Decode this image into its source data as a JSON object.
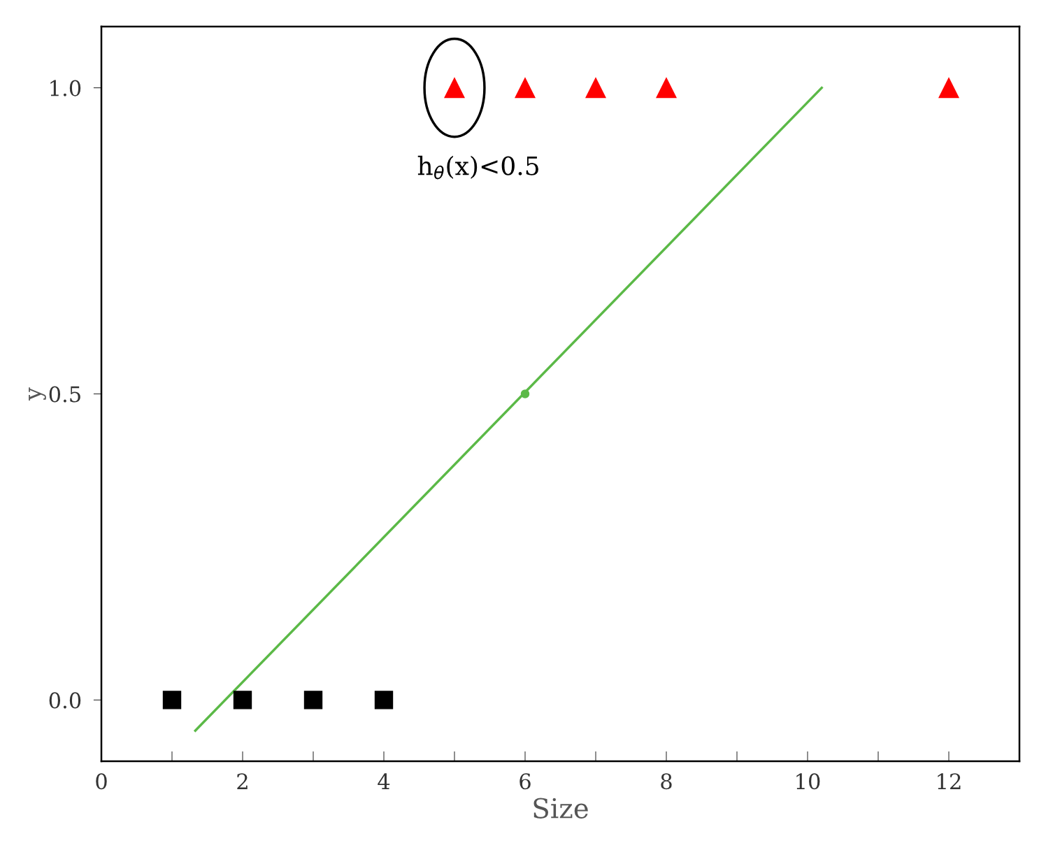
{
  "chart_data": {
    "type": "scatter",
    "xlabel": "Size",
    "ylabel": "y",
    "xlim": [
      0,
      13
    ],
    "ylim": [
      -0.1,
      1.1
    ],
    "xticks": [
      0,
      {
        "value": 1,
        "label": null
      },
      2,
      {
        "value": 3,
        "label": null
      },
      4,
      {
        "value": 5,
        "label": null
      },
      6,
      {
        "value": 7,
        "label": null
      },
      8,
      {
        "value": 9,
        "label": null
      },
      10,
      {
        "value": 11,
        "label": null
      },
      12
    ],
    "yticks": [
      {
        "value": 0,
        "label": "0.0"
      },
      0.5,
      {
        "value": 1,
        "label": "1.0"
      }
    ],
    "grid": false,
    "legend": false,
    "series": [
      {
        "marker": "square",
        "color": "#000000",
        "x": [
          1,
          2,
          3,
          4
        ],
        "values": [
          0,
          0,
          0,
          0
        ]
      },
      {
        "marker": "triangle",
        "color": "#ff0000",
        "x": [
          5,
          6,
          7,
          8,
          12
        ],
        "values": [
          1,
          1,
          1,
          1,
          1
        ]
      },
      {
        "type": "line",
        "color": "#5bb947",
        "line_style": "solid",
        "x": [
          1.33,
          10.2
        ],
        "values": [
          -0.05,
          1.0
        ]
      },
      {
        "marker": "circle",
        "color": "#5bb947",
        "x": [
          6
        ],
        "values": [
          0.5
        ]
      }
    ],
    "annotations": [
      {
        "text": "h$_{θ}$(x)<0.5",
        "x": 5,
        "y": 1
      }
    ]
  }
}
